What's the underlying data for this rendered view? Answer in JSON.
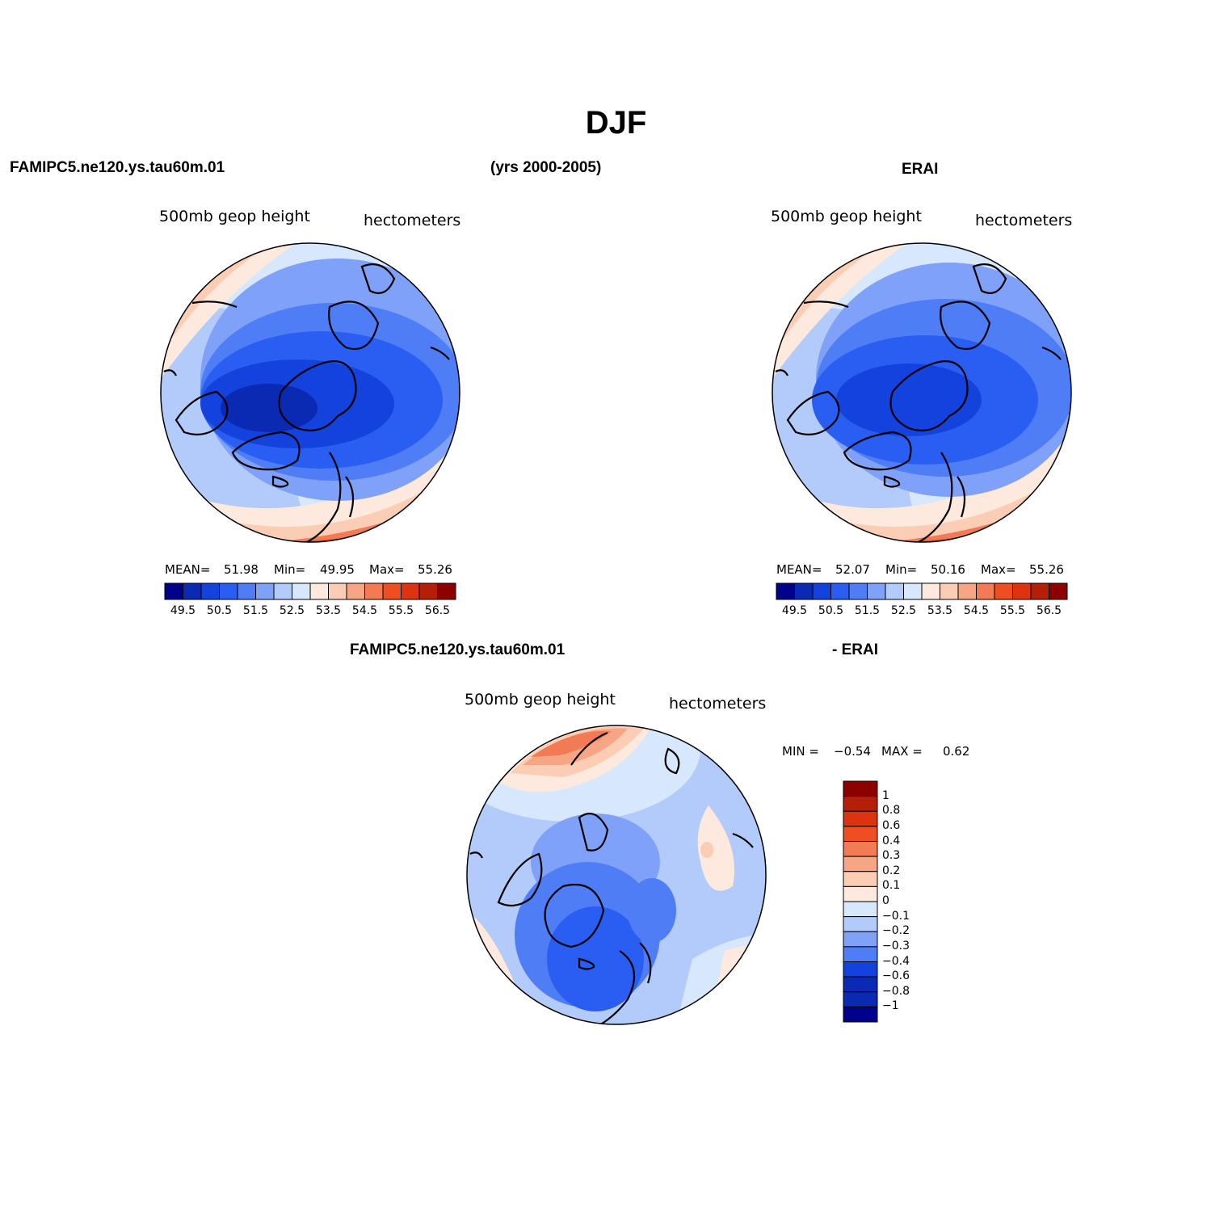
{
  "figure": {
    "title": "DJF",
    "left_header": "FAMIPC5.ne120.ys.tau60m.01",
    "center_header": "(yrs 2000-2005)",
    "right_header": "ERAI",
    "diff_header_left": "FAMIPC5.ne120.ys.tau60m.01",
    "diff_header_right": "- ERAI"
  },
  "panels": {
    "model": {
      "variable": "500mb  geop  height",
      "units": "hectometers",
      "mean_label": "MEAN=",
      "mean": "51.98",
      "min_label": "Min=",
      "min": "49.95",
      "max_label": "Max=",
      "max": "55.26"
    },
    "obs": {
      "variable": "500mb  geop  height",
      "units": "hectometers",
      "mean_label": "MEAN=",
      "mean": "52.07",
      "min_label": "Min=",
      "min": "50.16",
      "max_label": "Max=",
      "max": "55.26"
    },
    "diff": {
      "variable": "500mb  geop  height",
      "units": "hectometers",
      "min_label": "MIN =",
      "min": "−0.54",
      "max_label": "MAX =",
      "max": "0.62"
    }
  },
  "colorbars": {
    "height_ticks": [
      "49.5",
      "50.5",
      "51.5",
      "52.5",
      "53.5",
      "54.5",
      "55.5",
      "56.5"
    ],
    "height_colors": [
      "#00008c",
      "#0a2ab4",
      "#1442dc",
      "#2a5ef2",
      "#4f7df5",
      "#7fa1f7",
      "#b3cbfb",
      "#d8e8fc",
      "#fde9dd",
      "#fbcdb4",
      "#f7a685",
      "#f27a55",
      "#ee4e22",
      "#dd3310",
      "#b51f07",
      "#8c0000"
    ],
    "diff_ticks": [
      "1",
      "0.8",
      "0.6",
      "0.4",
      "0.3",
      "0.2",
      "0.1",
      "0",
      "−0.1",
      "−0.2",
      "−0.3",
      "−0.4",
      "−0.6",
      "−0.8",
      "−1"
    ],
    "diff_colors": [
      "#8c0000",
      "#b51f07",
      "#dd3310",
      "#ee4e22",
      "#f27a55",
      "#f7a685",
      "#fbcdb4",
      "#fde9dd",
      "#d8e8fc",
      "#b3cbfb",
      "#7fa1f7",
      "#4f7df5",
      "#1442dc",
      "#0a2ab4",
      "#0a2ab4",
      "#00008c"
    ]
  },
  "chart_data": [
    {
      "type": "heatmap",
      "title": "500mb  geop  height",
      "projection": "north polar stereographic",
      "units": "hectometers",
      "stats": {
        "mean": 51.98,
        "min": 49.95,
        "max": 55.26
      },
      "levels": [
        49.5,
        50.0,
        50.5,
        51.0,
        51.5,
        52.0,
        52.5,
        53.0,
        53.5,
        54.0,
        54.5,
        55.0,
        55.5,
        56.0,
        56.5
      ]
    },
    {
      "type": "heatmap",
      "title": "500mb  geop  height",
      "projection": "north polar stereographic",
      "units": "hectometers",
      "stats": {
        "mean": 52.07,
        "min": 50.16,
        "max": 55.26
      },
      "levels": [
        49.5,
        50.0,
        50.5,
        51.0,
        51.5,
        52.0,
        52.5,
        53.0,
        53.5,
        54.0,
        54.5,
        55.0,
        55.5,
        56.0,
        56.5
      ]
    },
    {
      "type": "heatmap",
      "title": "500mb  geop  height",
      "projection": "north polar stereographic",
      "units": "hectometers",
      "stats": {
        "min": -0.54,
        "max": 0.62
      },
      "levels": [
        -1,
        -0.8,
        -0.6,
        -0.4,
        -0.3,
        -0.2,
        -0.1,
        0,
        0.1,
        0.2,
        0.3,
        0.4,
        0.6,
        0.8,
        1
      ]
    }
  ]
}
